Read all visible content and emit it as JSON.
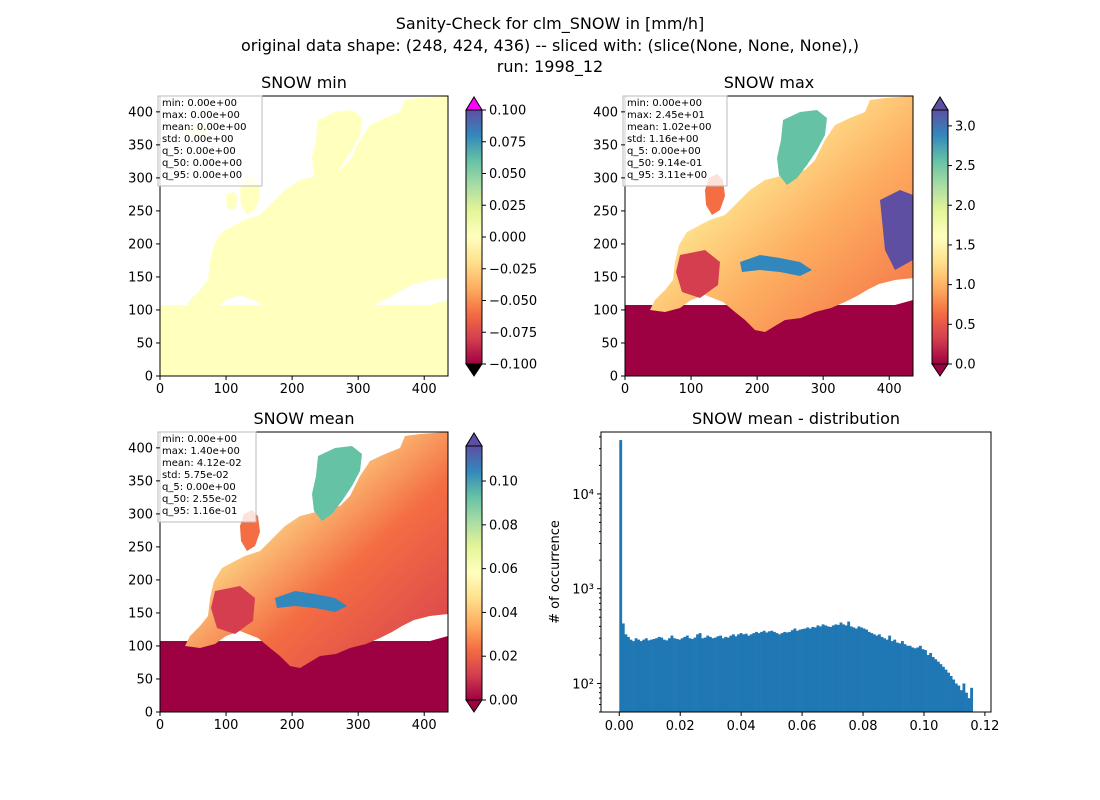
{
  "figure": {
    "title_lines": [
      "Sanity-Check for clm_SNOW in [mm/h]",
      "original data shape: (248, 424, 436) -- sliced with: (slice(None, None, None),)",
      "run: 1998_12"
    ]
  },
  "chart_data": [
    {
      "type": "heatmap",
      "title": "SNOW min",
      "xlim": [
        0,
        436
      ],
      "ylim": [
        0,
        424
      ],
      "xticks": [
        "0",
        "100",
        "200",
        "300",
        "400"
      ],
      "yticks": [
        "0",
        "50",
        "100",
        "150",
        "200",
        "250",
        "300",
        "350",
        "400"
      ],
      "colormap": "Spectral",
      "uniform_color": "#ffffbe",
      "colorbar": {
        "range": [
          -0.1,
          0.1
        ],
        "ticks": [
          "0.100",
          "0.075",
          "0.050",
          "0.025",
          "0.000",
          "−0.025",
          "−0.050",
          "−0.075",
          "−0.100"
        ],
        "over_color": "#ff00ff",
        "under_color": "#000000"
      },
      "stats": [
        "min: 0.00e+00",
        "max: 0.00e+00",
        "mean: 0.00e+00",
        "std: 0.00e+00",
        "q_5: 0.00e+00",
        "q_50: 0.00e+00",
        "q_95: 0.00e+00"
      ]
    },
    {
      "type": "heatmap",
      "title": "SNOW max",
      "xlim": [
        0,
        436
      ],
      "ylim": [
        0,
        424
      ],
      "xticks": [
        "0",
        "100",
        "200",
        "300",
        "400"
      ],
      "yticks": [
        "0",
        "50",
        "100",
        "150",
        "200",
        "250",
        "300",
        "350",
        "400"
      ],
      "colormap": "Spectral",
      "colorbar": {
        "range": [
          0.0,
          3.2
        ],
        "ticks": [
          "3.0",
          "2.5",
          "2.0",
          "1.5",
          "1.0",
          "0.5",
          "0.0"
        ]
      },
      "stats": [
        "min: 0.00e+00",
        "max: 2.45e+01",
        "mean: 1.02e+00",
        "std: 1.16e+00",
        "q_5: 0.00e+00",
        "q_50: 9.14e-01",
        "q_95: 3.11e+00"
      ]
    },
    {
      "type": "heatmap",
      "title": "SNOW mean",
      "xlim": [
        0,
        436
      ],
      "ylim": [
        0,
        424
      ],
      "xticks": [
        "0",
        "100",
        "200",
        "300",
        "400"
      ],
      "yticks": [
        "0",
        "50",
        "100",
        "150",
        "200",
        "250",
        "300",
        "350",
        "400"
      ],
      "colormap": "Spectral",
      "colorbar": {
        "range": [
          0.0,
          0.116
        ],
        "ticks": [
          "0.10",
          "0.08",
          "0.06",
          "0.04",
          "0.02",
          "0.00"
        ]
      },
      "stats": [
        "min: 0.00e+00",
        "max: 1.40e+00",
        "mean: 4.12e-02",
        "std: 5.75e-02",
        "q_5: 0.00e+00",
        "q_50: 2.55e-02",
        "q_95: 1.16e-01"
      ]
    },
    {
      "type": "bar",
      "title": "SNOW mean - distribution",
      "ylabel": "# of occurrence",
      "yscale": "log",
      "xlim": [
        -0.006,
        0.122
      ],
      "ylim": [
        50,
        45000
      ],
      "xticks": [
        "0.00",
        "0.02",
        "0.04",
        "0.06",
        "0.08",
        "0.10",
        "0.12"
      ],
      "yticks": [
        "10²",
        "10³",
        "10⁴"
      ],
      "bar_color": "#1f77b4",
      "bin_range": [
        0.0,
        0.116
      ],
      "counts": [
        37000,
        430,
        330,
        310,
        290,
        280,
        300,
        290,
        280,
        290,
        300,
        285,
        290,
        295,
        300,
        310,
        305,
        290,
        285,
        300,
        320,
        300,
        295,
        290,
        300,
        310,
        320,
        300,
        295,
        305,
        330,
        340,
        300,
        305,
        320,
        310,
        300,
        305,
        315,
        320,
        300,
        310,
        305,
        320,
        330,
        315,
        330,
        340,
        330,
        335,
        320,
        330,
        340,
        350,
        340,
        350,
        360,
        345,
        355,
        360,
        350,
        340,
        330,
        340,
        350,
        345,
        350,
        365,
        380,
        360,
        370,
        375,
        380,
        390,
        380,
        395,
        390,
        410,
        400,
        420,
        410,
        400,
        395,
        410,
        420,
        415,
        440,
        420,
        410,
        450,
        400,
        390,
        380,
        400,
        390,
        380,
        370,
        350,
        340,
        330,
        320,
        330,
        310,
        300,
        290,
        320,
        280,
        290,
        270,
        265,
        280,
        260,
        250,
        250,
        240,
        235,
        240,
        250,
        230,
        225,
        200,
        210,
        190,
        180,
        170,
        160,
        150,
        140,
        130,
        120,
        110,
        100,
        95,
        85,
        100,
        80,
        70,
        90
      ]
    }
  ]
}
